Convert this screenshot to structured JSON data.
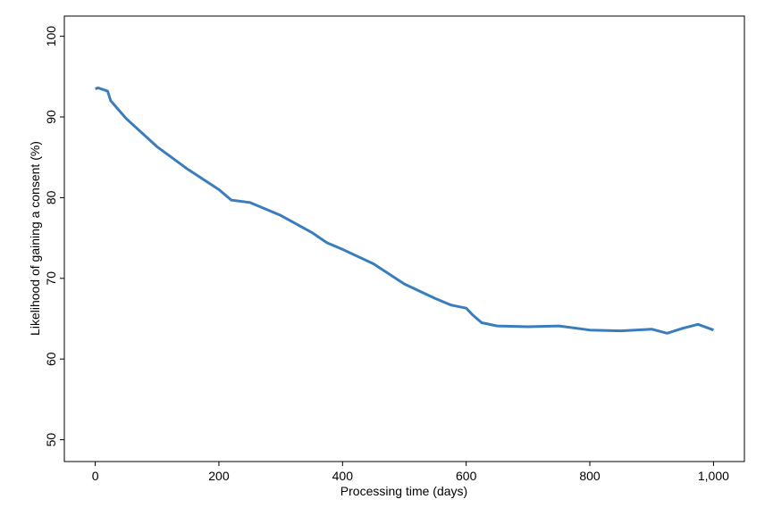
{
  "chart_data": {
    "type": "line",
    "x_label": "Processing time (days)",
    "y_label": "Likelihood of gaining a consent (%)",
    "x": [
      0,
      5,
      20,
      25,
      50,
      100,
      150,
      200,
      220,
      250,
      300,
      350,
      375,
      400,
      450,
      500,
      550,
      575,
      600,
      610,
      625,
      650,
      700,
      750,
      800,
      850,
      900,
      925,
      950,
      975,
      1000
    ],
    "values": [
      93.5,
      93.6,
      93.2,
      92.0,
      89.8,
      86.3,
      83.5,
      81.0,
      79.7,
      79.4,
      77.8,
      75.7,
      74.4,
      73.6,
      71.8,
      69.3,
      67.5,
      66.7,
      66.3,
      65.5,
      64.5,
      64.1,
      64.0,
      64.1,
      63.6,
      63.5,
      63.7,
      63.2,
      63.8,
      64.3,
      63.6
    ],
    "color": "#3a7dbd",
    "xlim": [
      -50,
      1050
    ],
    "xticks": [
      0,
      200,
      400,
      600,
      800,
      {
        "value": 1000,
        "label": "1,000"
      }
    ],
    "ylim": [
      47.3,
      102.5
    ],
    "yticks": [
      50,
      60,
      70,
      80,
      90,
      100
    ],
    "grid": false
  }
}
